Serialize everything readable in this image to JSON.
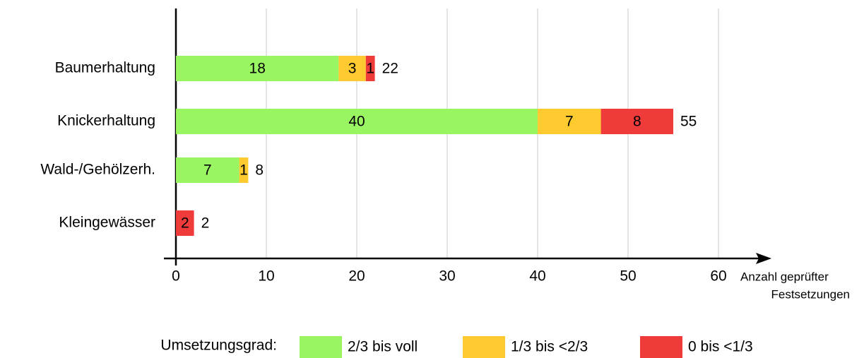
{
  "chart_data": {
    "type": "stacked-barh",
    "categories": [
      "Baumerhaltung",
      "Knickerhaltung",
      "Wald-/Gehölzerh.",
      "Kleingewässer"
    ],
    "series": [
      {
        "name": "2/3 bis voll",
        "color": "#9af563",
        "values": [
          18,
          40,
          7,
          null
        ]
      },
      {
        "name": "1/3 bis <2/3",
        "color": "#fdca2f",
        "values": [
          3,
          7,
          1,
          null
        ]
      },
      {
        "name": "0 bis <1/3",
        "color": "#f03b3b",
        "values": [
          1,
          8,
          null,
          2
        ]
      }
    ],
    "totals": [
      22,
      55,
      8,
      2
    ],
    "xlabel": [
      "Anzahl geprüfter",
      "Festsetzungen"
    ],
    "legend_title": "Umsetzungsgrad:",
    "xlim": [
      0,
      60
    ],
    "xticks": [
      0,
      10,
      20,
      30,
      40,
      50,
      60
    ],
    "grid": true
  }
}
